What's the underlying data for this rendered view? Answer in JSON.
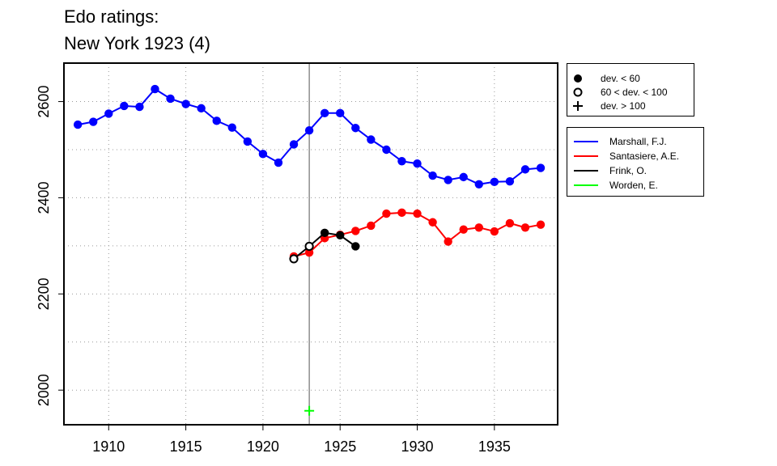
{
  "chart_data": {
    "type": "line",
    "title_lines": [
      "Edo ratings:",
      "New York 1923 (4)"
    ],
    "xlim": [
      1907.1,
      1939.1
    ],
    "ylim": [
      1928,
      2680
    ],
    "x_ticks": [
      1910,
      1915,
      1920,
      1925,
      1930,
      1935
    ],
    "y_ticks": [
      2000,
      2200,
      2400,
      2600
    ],
    "x_grid": [
      1910,
      1915,
      1920,
      1925,
      1930,
      1935
    ],
    "y_grid": [
      2000,
      2100,
      2200,
      2300,
      2400,
      2500,
      2600
    ],
    "grid": true,
    "vline_x": 1923,
    "legend_placement": "right",
    "marker_legend": [
      {
        "symbol": "filled-circle",
        "label": "dev. < 60"
      },
      {
        "symbol": "open-circle",
        "label": "60 < dev. < 100"
      },
      {
        "symbol": "plus",
        "label": "dev. > 100"
      }
    ],
    "series": [
      {
        "name": "Marshall, F.J.",
        "color": "#0000ff",
        "x": [
          1908,
          1909,
          1910,
          1911,
          1912,
          1913,
          1914,
          1915,
          1916,
          1917,
          1918,
          1919,
          1920,
          1921,
          1922,
          1923,
          1924,
          1925,
          1926,
          1927,
          1928,
          1929,
          1930,
          1931,
          1932,
          1933,
          1934,
          1935,
          1936,
          1937,
          1938
        ],
        "y": [
          2552,
          2558,
          2575,
          2591,
          2589,
          2626,
          2606,
          2595,
          2586,
          2560,
          2546,
          2517,
          2491,
          2473,
          2511,
          2540,
          2576,
          2576,
          2545,
          2521,
          2500,
          2476,
          2471,
          2446,
          2437,
          2443,
          2428,
          2433,
          2434,
          2459,
          2462
        ],
        "markers": [
          "filled",
          "filled",
          "filled",
          "filled",
          "filled",
          "filled",
          "filled",
          "filled",
          "filled",
          "filled",
          "filled",
          "filled",
          "filled",
          "filled",
          "filled",
          "filled",
          "filled",
          "filled",
          "filled",
          "filled",
          "filled",
          "filled",
          "filled",
          "filled",
          "filled",
          "filled",
          "filled",
          "filled",
          "filled",
          "filled",
          "filled"
        ]
      },
      {
        "name": "Santasiere, A.E.",
        "color": "#ff0000",
        "x": [
          1922,
          1923,
          1924,
          1925,
          1926,
          1927,
          1928,
          1929,
          1930,
          1931,
          1932,
          1933,
          1934,
          1935,
          1936,
          1937,
          1938
        ],
        "y": [
          2278,
          2286,
          2316,
          2323,
          2331,
          2342,
          2367,
          2369,
          2367,
          2349,
          2309,
          2334,
          2338,
          2330,
          2347,
          2338,
          2344
        ],
        "markers": [
          "filled",
          "filled",
          "filled",
          "filled",
          "filled",
          "filled",
          "filled",
          "filled",
          "filled",
          "filled",
          "filled",
          "filled",
          "filled",
          "filled",
          "filled",
          "filled",
          "filled"
        ]
      },
      {
        "name": "Frink, O.",
        "color": "#000000",
        "x": [
          1922,
          1923,
          1924,
          1925,
          1926
        ],
        "y": [
          2273,
          2299,
          2327,
          2322,
          2299
        ],
        "markers": [
          "open",
          "open",
          "filled",
          "filled",
          "filled"
        ]
      },
      {
        "name": "Worden, E.",
        "color": "#00ff00",
        "x": [
          1923
        ],
        "y": [
          1957
        ],
        "markers": [
          "plus"
        ]
      }
    ]
  }
}
